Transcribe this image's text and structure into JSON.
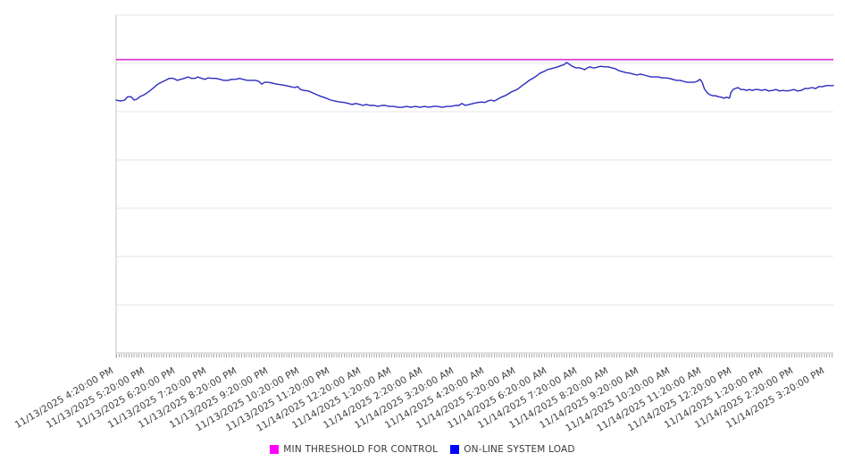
{
  "chart_data": {
    "type": "line",
    "title": "",
    "x_axis": {
      "tick_labels": [
        "11/13/2025 4:20:00 PM",
        "11/13/2025 5:20:00 PM",
        "11/13/2025 6:20:00 PM",
        "11/13/2025 7:20:00 PM",
        "11/13/2025 8:20:00 PM",
        "11/13/2025 9:20:00 PM",
        "11/13/2025 10:20:00 PM",
        "11/13/2025 11:20:00 PM",
        "11/14/2025 12:20:00 AM",
        "11/14/2025 1:20:00 AM",
        "11/14/2025 2:20:00 AM",
        "11/14/2025 3:20:00 AM",
        "11/14/2025 4:20:00 AM",
        "11/14/2025 5:20:00 AM",
        "11/14/2025 6:20:00 AM",
        "11/14/2025 7:20:00 AM",
        "11/14/2025 8:20:00 AM",
        "11/14/2025 9:20:00 AM",
        "11/14/2025 10:20:00 AM",
        "11/14/2025 11:20:00 AM",
        "11/14/2025 12:20:00 PM",
        "11/14/2025 1:20:00 PM",
        "11/14/2025 2:20:00 PM",
        "11/14/2025 3:20:00 PM"
      ],
      "minor_ticks": "dense per-sample ticks along full axis"
    },
    "y_axis": {
      "labels_visible": false,
      "range_units": [
        0,
        7
      ],
      "gridline_spacing_units": 1
    },
    "grid": "horizontal",
    "legend": {
      "position": "bottom-center",
      "entries": [
        {
          "label": "MIN THRESHOLD FOR CONTROL",
          "swatch_color": "#ff00ff"
        },
        {
          "label": "ON-LINE SYSTEM LOAD",
          "swatch_color": "#0000ff"
        }
      ]
    },
    "series": [
      {
        "name": "MIN THRESHOLD FOR CONTROL",
        "type": "constant-threshold",
        "color": "#db30d0",
        "value_units": 6.08
      },
      {
        "name": "ON-LINE SYSTEM LOAD",
        "type": "line",
        "color": "#2b2bc0",
        "points": [
          [
            0.0,
            5.24
          ],
          [
            0.006,
            5.22
          ],
          [
            0.012,
            5.24
          ],
          [
            0.016,
            5.31
          ],
          [
            0.021,
            5.31
          ],
          [
            0.025,
            5.24
          ],
          [
            0.029,
            5.26
          ],
          [
            0.033,
            5.31
          ],
          [
            0.039,
            5.35
          ],
          [
            0.045,
            5.41
          ],
          [
            0.051,
            5.48
          ],
          [
            0.057,
            5.56
          ],
          [
            0.063,
            5.61
          ],
          [
            0.069,
            5.65
          ],
          [
            0.074,
            5.69
          ],
          [
            0.08,
            5.69
          ],
          [
            0.085,
            5.65
          ],
          [
            0.09,
            5.67
          ],
          [
            0.095,
            5.69
          ],
          [
            0.1,
            5.72
          ],
          [
            0.105,
            5.69
          ],
          [
            0.11,
            5.69
          ],
          [
            0.114,
            5.72
          ],
          [
            0.119,
            5.69
          ],
          [
            0.124,
            5.67
          ],
          [
            0.128,
            5.7
          ],
          [
            0.133,
            5.69
          ],
          [
            0.139,
            5.69
          ],
          [
            0.145,
            5.67
          ],
          [
            0.15,
            5.65
          ],
          [
            0.156,
            5.65
          ],
          [
            0.161,
            5.67
          ],
          [
            0.167,
            5.67
          ],
          [
            0.172,
            5.69
          ],
          [
            0.177,
            5.67
          ],
          [
            0.183,
            5.65
          ],
          [
            0.189,
            5.65
          ],
          [
            0.194,
            5.65
          ],
          [
            0.199,
            5.63
          ],
          [
            0.203,
            5.57
          ],
          [
            0.207,
            5.61
          ],
          [
            0.212,
            5.61
          ],
          [
            0.218,
            5.59
          ],
          [
            0.224,
            5.57
          ],
          [
            0.23,
            5.56
          ],
          [
            0.237,
            5.54
          ],
          [
            0.243,
            5.52
          ],
          [
            0.249,
            5.5
          ],
          [
            0.253,
            5.52
          ],
          [
            0.257,
            5.46
          ],
          [
            0.262,
            5.44
          ],
          [
            0.268,
            5.43
          ],
          [
            0.274,
            5.39
          ],
          [
            0.28,
            5.35
          ],
          [
            0.287,
            5.31
          ],
          [
            0.293,
            5.28
          ],
          [
            0.299,
            5.24
          ],
          [
            0.305,
            5.22
          ],
          [
            0.312,
            5.2
          ],
          [
            0.318,
            5.19
          ],
          [
            0.324,
            5.17
          ],
          [
            0.329,
            5.15
          ],
          [
            0.334,
            5.17
          ],
          [
            0.34,
            5.15
          ],
          [
            0.344,
            5.13
          ],
          [
            0.349,
            5.15
          ],
          [
            0.354,
            5.13
          ],
          [
            0.36,
            5.13
          ],
          [
            0.365,
            5.11
          ],
          [
            0.37,
            5.13
          ],
          [
            0.375,
            5.13
          ],
          [
            0.381,
            5.11
          ],
          [
            0.387,
            5.11
          ],
          [
            0.393,
            5.09
          ],
          [
            0.399,
            5.09
          ],
          [
            0.405,
            5.11
          ],
          [
            0.411,
            5.09
          ],
          [
            0.417,
            5.11
          ],
          [
            0.424,
            5.09
          ],
          [
            0.43,
            5.11
          ],
          [
            0.436,
            5.09
          ],
          [
            0.442,
            5.11
          ],
          [
            0.448,
            5.11
          ],
          [
            0.455,
            5.09
          ],
          [
            0.461,
            5.11
          ],
          [
            0.467,
            5.11
          ],
          [
            0.473,
            5.13
          ],
          [
            0.478,
            5.13
          ],
          [
            0.482,
            5.17
          ],
          [
            0.487,
            5.13
          ],
          [
            0.492,
            5.15
          ],
          [
            0.498,
            5.17
          ],
          [
            0.504,
            5.19
          ],
          [
            0.51,
            5.2
          ],
          [
            0.514,
            5.19
          ],
          [
            0.518,
            5.22
          ],
          [
            0.523,
            5.24
          ],
          [
            0.527,
            5.22
          ],
          [
            0.532,
            5.26
          ],
          [
            0.537,
            5.3
          ],
          [
            0.542,
            5.33
          ],
          [
            0.547,
            5.37
          ],
          [
            0.551,
            5.41
          ],
          [
            0.556,
            5.44
          ],
          [
            0.561,
            5.48
          ],
          [
            0.566,
            5.54
          ],
          [
            0.571,
            5.59
          ],
          [
            0.576,
            5.65
          ],
          [
            0.581,
            5.69
          ],
          [
            0.586,
            5.74
          ],
          [
            0.591,
            5.8
          ],
          [
            0.596,
            5.83
          ],
          [
            0.601,
            5.87
          ],
          [
            0.606,
            5.89
          ],
          [
            0.611,
            5.91
          ],
          [
            0.616,
            5.93
          ],
          [
            0.621,
            5.96
          ],
          [
            0.625,
            5.98
          ],
          [
            0.628,
            6.02
          ],
          [
            0.632,
            5.98
          ],
          [
            0.636,
            5.94
          ],
          [
            0.641,
            5.91
          ],
          [
            0.646,
            5.91
          ],
          [
            0.65,
            5.89
          ],
          [
            0.653,
            5.87
          ],
          [
            0.657,
            5.91
          ],
          [
            0.661,
            5.93
          ],
          [
            0.664,
            5.91
          ],
          [
            0.668,
            5.91
          ],
          [
            0.672,
            5.93
          ],
          [
            0.676,
            5.94
          ],
          [
            0.681,
            5.93
          ],
          [
            0.686,
            5.93
          ],
          [
            0.691,
            5.91
          ],
          [
            0.696,
            5.89
          ],
          [
            0.701,
            5.85
          ],
          [
            0.706,
            5.83
          ],
          [
            0.711,
            5.81
          ],
          [
            0.716,
            5.8
          ],
          [
            0.721,
            5.78
          ],
          [
            0.726,
            5.76
          ],
          [
            0.731,
            5.78
          ],
          [
            0.736,
            5.76
          ],
          [
            0.741,
            5.74
          ],
          [
            0.746,
            5.72
          ],
          [
            0.751,
            5.72
          ],
          [
            0.756,
            5.72
          ],
          [
            0.761,
            5.7
          ],
          [
            0.766,
            5.7
          ],
          [
            0.771,
            5.69
          ],
          [
            0.776,
            5.67
          ],
          [
            0.781,
            5.65
          ],
          [
            0.786,
            5.65
          ],
          [
            0.791,
            5.63
          ],
          [
            0.796,
            5.61
          ],
          [
            0.801,
            5.61
          ],
          [
            0.806,
            5.61
          ],
          [
            0.81,
            5.63
          ],
          [
            0.814,
            5.67
          ],
          [
            0.817,
            5.61
          ],
          [
            0.82,
            5.48
          ],
          [
            0.824,
            5.39
          ],
          [
            0.828,
            5.35
          ],
          [
            0.832,
            5.33
          ],
          [
            0.836,
            5.33
          ],
          [
            0.84,
            5.31
          ],
          [
            0.844,
            5.3
          ],
          [
            0.847,
            5.28
          ],
          [
            0.851,
            5.3
          ],
          [
            0.855,
            5.28
          ],
          [
            0.857,
            5.39
          ],
          [
            0.86,
            5.46
          ],
          [
            0.863,
            5.48
          ],
          [
            0.867,
            5.5
          ],
          [
            0.871,
            5.46
          ],
          [
            0.875,
            5.46
          ],
          [
            0.879,
            5.44
          ],
          [
            0.883,
            5.46
          ],
          [
            0.887,
            5.44
          ],
          [
            0.891,
            5.46
          ],
          [
            0.895,
            5.46
          ],
          [
            0.9,
            5.44
          ],
          [
            0.905,
            5.46
          ],
          [
            0.91,
            5.43
          ],
          [
            0.915,
            5.44
          ],
          [
            0.92,
            5.46
          ],
          [
            0.925,
            5.43
          ],
          [
            0.93,
            5.44
          ],
          [
            0.935,
            5.43
          ],
          [
            0.94,
            5.44
          ],
          [
            0.945,
            5.46
          ],
          [
            0.95,
            5.43
          ],
          [
            0.955,
            5.44
          ],
          [
            0.96,
            5.48
          ],
          [
            0.965,
            5.48
          ],
          [
            0.97,
            5.5
          ],
          [
            0.975,
            5.48
          ],
          [
            0.98,
            5.52
          ],
          [
            0.985,
            5.52
          ],
          [
            0.99,
            5.54
          ],
          [
            0.995,
            5.54
          ],
          [
            1.0,
            5.54
          ]
        ]
      }
    ],
    "colors": {
      "gridline": "#e6e6e6",
      "axis": "#c4c4c4",
      "minor_tick": "#a9a9a9",
      "label_text": "#3d3d3d",
      "legend_text": "#3a3a3a"
    }
  }
}
